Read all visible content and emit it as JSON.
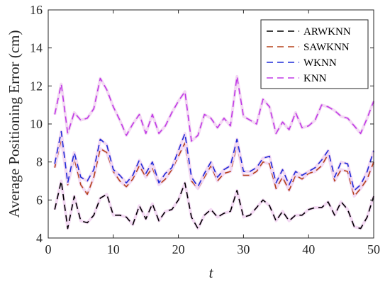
{
  "chart_data": {
    "type": "line",
    "xlabel": "t",
    "ylabel": "Average Positioning  Error (cm)",
    "xlim": [
      0,
      50
    ],
    "ylim": [
      4,
      16
    ],
    "xticks": [
      0,
      10,
      20,
      30,
      40,
      50
    ],
    "yticks": [
      4,
      6,
      8,
      10,
      12,
      14,
      16
    ],
    "grid": false,
    "legend_position": "top-right",
    "x": [
      1,
      2,
      3,
      4,
      5,
      6,
      7,
      8,
      9,
      10,
      11,
      12,
      13,
      14,
      15,
      16,
      17,
      18,
      19,
      20,
      21,
      22,
      23,
      24,
      25,
      26,
      27,
      28,
      29,
      30,
      31,
      32,
      33,
      34,
      35,
      36,
      37,
      38,
      39,
      40,
      41,
      42,
      43,
      44,
      45,
      46,
      47,
      48,
      49,
      50
    ],
    "series": [
      {
        "name": "ARWKNN",
        "color": "#000000",
        "values": [
          5.5,
          7.0,
          4.5,
          6.2,
          4.9,
          4.8,
          5.2,
          6.1,
          6.3,
          5.2,
          5.2,
          5.1,
          4.7,
          5.7,
          5.0,
          5.8,
          4.9,
          5.4,
          5.5,
          6.0,
          6.9,
          5.1,
          4.5,
          5.2,
          5.5,
          5.1,
          5.3,
          5.4,
          6.5,
          5.1,
          5.2,
          5.6,
          6.0,
          5.7,
          4.9,
          5.4,
          4.9,
          5.2,
          5.2,
          5.5,
          5.6,
          5.6,
          5.9,
          5.2,
          5.9,
          5.5,
          4.6,
          4.5,
          5.1,
          6.2
        ]
      },
      {
        "name": "SAWKNN",
        "color": "#b5421a",
        "values": [
          7.7,
          9.2,
          6.8,
          8.2,
          6.8,
          6.3,
          7.2,
          8.7,
          8.5,
          7.5,
          7.0,
          6.7,
          7.1,
          7.8,
          7.2,
          7.7,
          6.8,
          7.1,
          7.6,
          8.3,
          9.0,
          7.0,
          6.6,
          7.2,
          7.8,
          7.0,
          7.4,
          7.5,
          8.9,
          7.3,
          7.3,
          7.5,
          8.0,
          7.9,
          6.6,
          7.2,
          6.5,
          7.3,
          7.1,
          7.4,
          7.5,
          7.8,
          8.4,
          7.0,
          7.6,
          7.5,
          6.2,
          6.6,
          7.1,
          8.0
        ]
      },
      {
        "name": "WKNN",
        "color": "#1f2bd8",
        "values": [
          7.9,
          9.6,
          6.9,
          8.5,
          7.2,
          7.0,
          7.6,
          9.2,
          8.9,
          7.6,
          7.3,
          6.9,
          7.3,
          8.1,
          7.4,
          8.0,
          6.9,
          7.4,
          7.7,
          8.6,
          9.5,
          7.2,
          6.7,
          7.4,
          8.0,
          7.2,
          7.6,
          7.8,
          9.2,
          7.5,
          7.5,
          7.7,
          8.2,
          8.3,
          6.9,
          7.6,
          6.8,
          7.5,
          7.3,
          7.5,
          7.7,
          8.1,
          8.6,
          7.2,
          8.0,
          7.9,
          6.5,
          6.8,
          7.5,
          8.6
        ]
      },
      {
        "name": "KNN",
        "color": "#c03ae6",
        "values": [
          10.5,
          12.1,
          9.5,
          10.6,
          10.2,
          10.3,
          10.8,
          12.4,
          11.8,
          10.9,
          10.2,
          9.4,
          10.0,
          10.5,
          9.5,
          10.5,
          9.5,
          9.9,
          10.6,
          11.2,
          11.7,
          9.1,
          9.4,
          10.5,
          10.3,
          9.8,
          10.3,
          9.9,
          12.5,
          10.4,
          10.2,
          10.0,
          11.3,
          10.9,
          9.5,
          10.1,
          9.7,
          10.6,
          9.8,
          9.9,
          10.2,
          11.0,
          10.9,
          10.7,
          10.4,
          10.3,
          9.9,
          9.5,
          10.3,
          11.2
        ]
      }
    ]
  }
}
